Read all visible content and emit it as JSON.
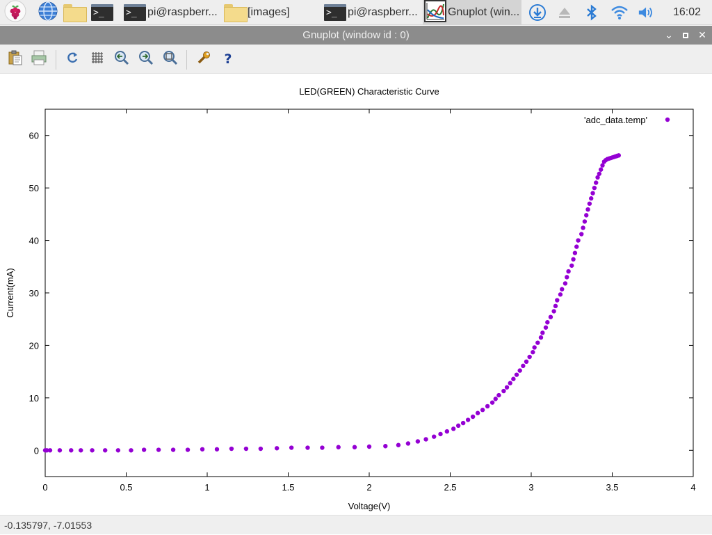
{
  "taskbar": {
    "items": [
      {
        "icon": "terminal-icon",
        "label": ""
      },
      {
        "icon": "terminal-icon",
        "label": "pi@raspberr..."
      },
      {
        "icon": "folder-icon",
        "label": "[images]"
      },
      {
        "icon": "terminal-icon",
        "label": "pi@raspberr..."
      },
      {
        "icon": "gnuplot-icon",
        "label": "Gnuplot (win..."
      }
    ],
    "clock": "16:02"
  },
  "window": {
    "title": "Gnuplot (window id : 0)"
  },
  "toolbar": {
    "icons": [
      "clipboard-icon",
      "print-icon",
      "replot-icon",
      "grid-icon",
      "zoom-previous-icon",
      "zoom-next-icon",
      "autoscale-icon",
      "settings-icon",
      "help-icon"
    ]
  },
  "status": {
    "coordinates": "-0.135797, -7.01553"
  },
  "chart_data": {
    "type": "scatter",
    "title": "LED(GREEN) Characteristic Curve",
    "xlabel": "Voltage(V)",
    "ylabel": "Current(mA)",
    "xlim": [
      0,
      4
    ],
    "ylim": [
      -5,
      65
    ],
    "xticks": [
      0,
      0.5,
      1,
      1.5,
      2,
      2.5,
      3,
      3.5,
      4
    ],
    "xtick_labels": [
      "0",
      "0.5",
      "1",
      "1.5",
      "2",
      "2.5",
      "3",
      "3.5",
      "4"
    ],
    "yticks": [
      0,
      10,
      20,
      30,
      40,
      50,
      60
    ],
    "ytick_labels": [
      "0",
      "10",
      "20",
      "30",
      "40",
      "50",
      "60"
    ],
    "grid": false,
    "legend_position": "top-right",
    "series": [
      {
        "name": "'adc_data.temp'",
        "color": "#9400d3",
        "x": [
          0.0,
          0.01,
          0.03,
          0.09,
          0.16,
          0.22,
          0.29,
          0.37,
          0.45,
          0.53,
          0.61,
          0.7,
          0.79,
          0.88,
          0.97,
          1.06,
          1.15,
          1.24,
          1.33,
          1.43,
          1.52,
          1.62,
          1.71,
          1.81,
          1.91,
          2.0,
          2.1,
          2.18,
          2.24,
          2.3,
          2.35,
          2.4,
          2.44,
          2.48,
          2.52,
          2.55,
          2.58,
          2.61,
          2.64,
          2.67,
          2.7,
          2.73,
          2.76,
          2.78,
          2.8,
          2.83,
          2.85,
          2.87,
          2.89,
          2.91,
          2.93,
          2.95,
          2.97,
          2.99,
          3.01,
          3.02,
          3.04,
          3.06,
          3.07,
          3.09,
          3.1,
          3.12,
          3.14,
          3.15,
          3.16,
          3.18,
          3.19,
          3.21,
          3.22,
          3.23,
          3.25,
          3.26,
          3.27,
          3.28,
          3.29,
          3.31,
          3.32,
          3.33,
          3.34,
          3.35,
          3.36,
          3.37,
          3.38,
          3.39,
          3.4,
          3.41,
          3.42,
          3.43,
          3.44,
          3.45,
          3.46,
          3.47,
          3.48,
          3.49,
          3.5,
          3.51,
          3.52,
          3.53,
          3.54
        ],
        "y": [
          0.0,
          0.0,
          0.0,
          0.0,
          0.0,
          0.0,
          0.0,
          0.0,
          0.0,
          0.0,
          0.1,
          0.1,
          0.1,
          0.1,
          0.2,
          0.2,
          0.3,
          0.3,
          0.3,
          0.4,
          0.5,
          0.5,
          0.5,
          0.6,
          0.6,
          0.7,
          0.8,
          1.0,
          1.3,
          1.7,
          2.1,
          2.6,
          3.1,
          3.6,
          4.1,
          4.7,
          5.2,
          5.8,
          6.4,
          7.1,
          7.7,
          8.4,
          9.1,
          9.8,
          10.5,
          11.3,
          12.0,
          12.8,
          13.6,
          14.4,
          15.2,
          16.1,
          16.9,
          17.8,
          18.7,
          19.6,
          20.5,
          21.5,
          22.4,
          23.4,
          24.4,
          25.4,
          26.5,
          27.5,
          28.6,
          29.7,
          30.7,
          31.8,
          33.0,
          34.1,
          35.2,
          36.4,
          37.6,
          38.8,
          40.0,
          41.2,
          42.4,
          43.6,
          44.8,
          45.9,
          47.0,
          48.0,
          49.0,
          50.0,
          51.0,
          52.0,
          52.7,
          53.5,
          54.3,
          55.0,
          55.3,
          55.5,
          55.6,
          55.7,
          55.8,
          55.9,
          56.0,
          56.1,
          56.2
        ]
      }
    ]
  }
}
